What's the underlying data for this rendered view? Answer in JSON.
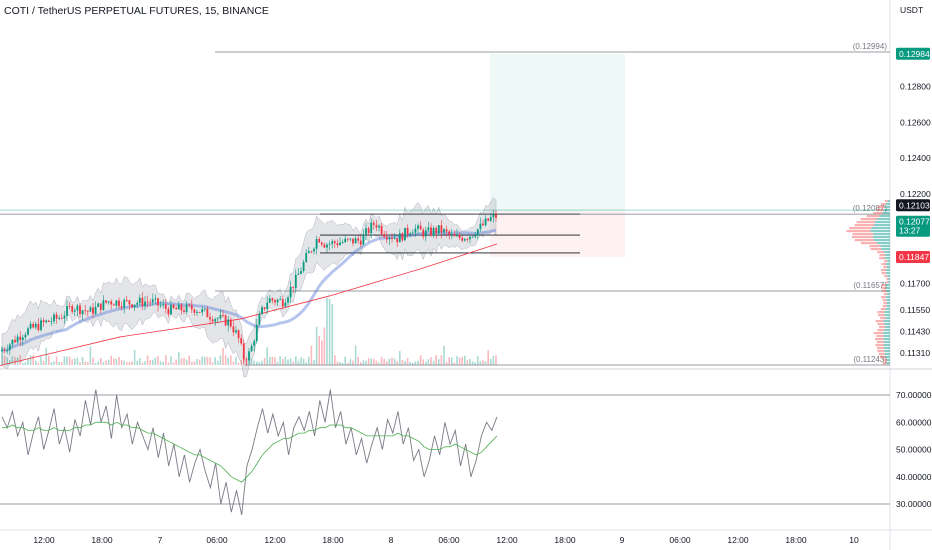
{
  "header": {
    "title": "COTI / TetherUS PERPETUAL FUTURES, 15, BINANCE"
  },
  "chart_data": [
    {
      "type": "candlestick",
      "pair": "COTI / TetherUS PERPETUAL FUTURES",
      "interval": "15",
      "exchange": "BINANCE",
      "currency": "USDT",
      "ylim": [
        0.1124,
        0.1305
      ],
      "y_ticks": [
        "0.12800",
        "0.12600",
        "0.12400",
        "0.12200",
        "0.11700",
        "0.11550",
        "0.11430",
        "0.11310"
      ],
      "x_ticks": [
        "12:00",
        "18:00",
        "7",
        "06:00",
        "12:00",
        "18:00",
        "8",
        "06:00",
        "12:00",
        "18:00",
        "9",
        "06:00",
        "12:00",
        "18:00",
        "10"
      ],
      "current_price": {
        "value": "0.12077",
        "countdown": "13:27",
        "color": "#089981"
      },
      "price_labels": [
        {
          "value": "0.12984",
          "color": "#089981"
        },
        {
          "value": "0.12103",
          "color": "#131722"
        },
        {
          "value": "0.11847",
          "color": "#f23645"
        }
      ],
      "horizontal_levels": [
        {
          "label": "(0.12994)",
          "value": 0.12994
        },
        {
          "label": "(0.12087)",
          "value": 0.12087
        },
        {
          "label": "(0.11657)",
          "value": 0.11657
        },
        {
          "label": "(0.11243)",
          "value": 0.11243
        }
      ],
      "position_tool": {
        "entry": 0.12103,
        "target": 0.12984,
        "stop": 0.11847
      },
      "close_path": [
        [
          0,
          0.1132
        ],
        [
          25,
          0.1143
        ],
        [
          45,
          0.1148
        ],
        [
          60,
          0.1151
        ],
        [
          72,
          0.1157
        ],
        [
          90,
          0.1154
        ],
        [
          108,
          0.116
        ],
        [
          130,
          0.1159
        ],
        [
          150,
          0.116
        ],
        [
          170,
          0.1155
        ],
        [
          195,
          0.1156
        ],
        [
          210,
          0.1152
        ],
        [
          230,
          0.1148
        ],
        [
          238,
          0.114
        ],
        [
          244,
          0.1128
        ],
        [
          250,
          0.1131
        ],
        [
          260,
          0.1152
        ],
        [
          268,
          0.1161
        ],
        [
          283,
          0.116
        ],
        [
          296,
          0.1172
        ],
        [
          306,
          0.1184
        ],
        [
          318,
          0.1196
        ],
        [
          325,
          0.1192
        ],
        [
          340,
          0.1193
        ],
        [
          360,
          0.1194
        ],
        [
          375,
          0.1204
        ],
        [
          385,
          0.1198
        ],
        [
          398,
          0.1195
        ],
        [
          412,
          0.1201
        ],
        [
          425,
          0.1198
        ],
        [
          440,
          0.12
        ],
        [
          455,
          0.1195
        ],
        [
          470,
          0.1197
        ],
        [
          482,
          0.1202
        ],
        [
          490,
          0.1206
        ],
        [
          497,
          0.12077
        ]
      ],
      "overlay_lines": [
        {
          "name": "",
          "color": "#f23645"
        },
        {
          "name": "",
          "color": "#5b7fd6"
        }
      ],
      "volume_profile_color_up": "#26a69a",
      "volume_profile_color_down": "#ef5350"
    },
    {
      "type": "line",
      "indicator": "oscillator",
      "ylim": [
        25,
        75
      ],
      "y_ticks": [
        "70.00000",
        "60.00000",
        "50.00000",
        "40.00000",
        "30.00000"
      ],
      "guide_levels": [
        70,
        30
      ],
      "series": [
        {
          "name": "",
          "color": "#787b86",
          "values": [
            62,
            58,
            64,
            55,
            60,
            48,
            56,
            62,
            50,
            57,
            65,
            52,
            58,
            49,
            61,
            55,
            68,
            59,
            72,
            60,
            66,
            54,
            70,
            58,
            63,
            52,
            60,
            55,
            50,
            58,
            47,
            56,
            44,
            52,
            40,
            48,
            38,
            45,
            50,
            42,
            36,
            45,
            30,
            38,
            27,
            35,
            26,
            44,
            50,
            58,
            65,
            56,
            63,
            55,
            60,
            48,
            58,
            62,
            57,
            64,
            55,
            68,
            60,
            72,
            58,
            64,
            52,
            58,
            48,
            54,
            45,
            52,
            58,
            50,
            61,
            56,
            64,
            52,
            58,
            46,
            50,
            40,
            46,
            55,
            48,
            60,
            52,
            57,
            44,
            52,
            40,
            46,
            55,
            60,
            57,
            62
          ]
        },
        {
          "name": "",
          "color": "#4caf50",
          "values": [
            58,
            58,
            59,
            58,
            58,
            57,
            57,
            58,
            57,
            57,
            58,
            57,
            57,
            57,
            58,
            58,
            59,
            59,
            60,
            60,
            60,
            59,
            60,
            59,
            59,
            58,
            58,
            57,
            56,
            56,
            55,
            54,
            53,
            52,
            51,
            50,
            49,
            48,
            48,
            47,
            46,
            45,
            44,
            42,
            40,
            39,
            38,
            40,
            42,
            45,
            48,
            50,
            52,
            53,
            54,
            54,
            55,
            56,
            56,
            57,
            57,
            58,
            58,
            59,
            59,
            59,
            58,
            58,
            57,
            56,
            55,
            55,
            55,
            55,
            55,
            55,
            56,
            55,
            55,
            54,
            53,
            51,
            50,
            50,
            50,
            51,
            51,
            52,
            51,
            50,
            49,
            48,
            49,
            51,
            53,
            55
          ]
        }
      ]
    }
  ]
}
